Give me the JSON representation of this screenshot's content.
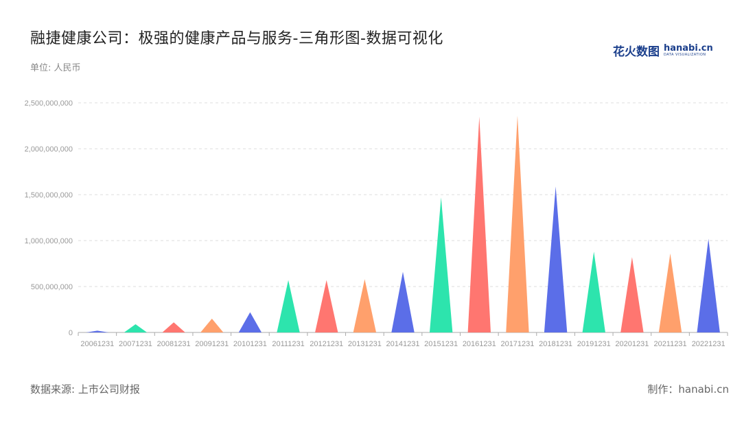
{
  "header": {
    "title": "融捷健康公司：极强的健康产品与服务-三角形图-数据可视化",
    "unit": "单位: 人民币"
  },
  "logo": {
    "text_cn": "花火数图",
    "text_en": "hanabi.cn",
    "tagline": "DATA VISUALIZATION"
  },
  "footer": {
    "source": "数据来源: 上市公司财报",
    "maker": "制作：hanabi.cn"
  },
  "colors": {
    "palette": [
      "#5b6ee8",
      "#2de4ad",
      "#ff7670",
      "#ffa06c"
    ],
    "grid": "#dddddd",
    "axis": "#aaaaaa"
  },
  "chart_data": {
    "type": "bar",
    "mark": "triangle",
    "categories": [
      "20061231",
      "20071231",
      "20081231",
      "20091231",
      "20101231",
      "20111231",
      "20121231",
      "20131231",
      "20141231",
      "20151231",
      "20161231",
      "20171231",
      "20181231",
      "20191231",
      "20201231",
      "20211231",
      "20221231"
    ],
    "values": [
      20000000,
      90000000,
      110000000,
      150000000,
      220000000,
      570000000,
      570000000,
      580000000,
      660000000,
      1470000000,
      2350000000,
      2360000000,
      1590000000,
      880000000,
      820000000,
      860000000,
      1020000000
    ],
    "ylim": [
      0,
      2500000000
    ],
    "yticks": [
      0,
      500000000,
      1000000000,
      1500000000,
      2000000000,
      2500000000
    ],
    "ytick_labels": [
      "0",
      "500,000,000",
      "1,000,000,000",
      "1,500,000,000",
      "2,000,000,000",
      "2,500,000,000"
    ],
    "grid": true,
    "xlabel": "",
    "ylabel": ""
  }
}
